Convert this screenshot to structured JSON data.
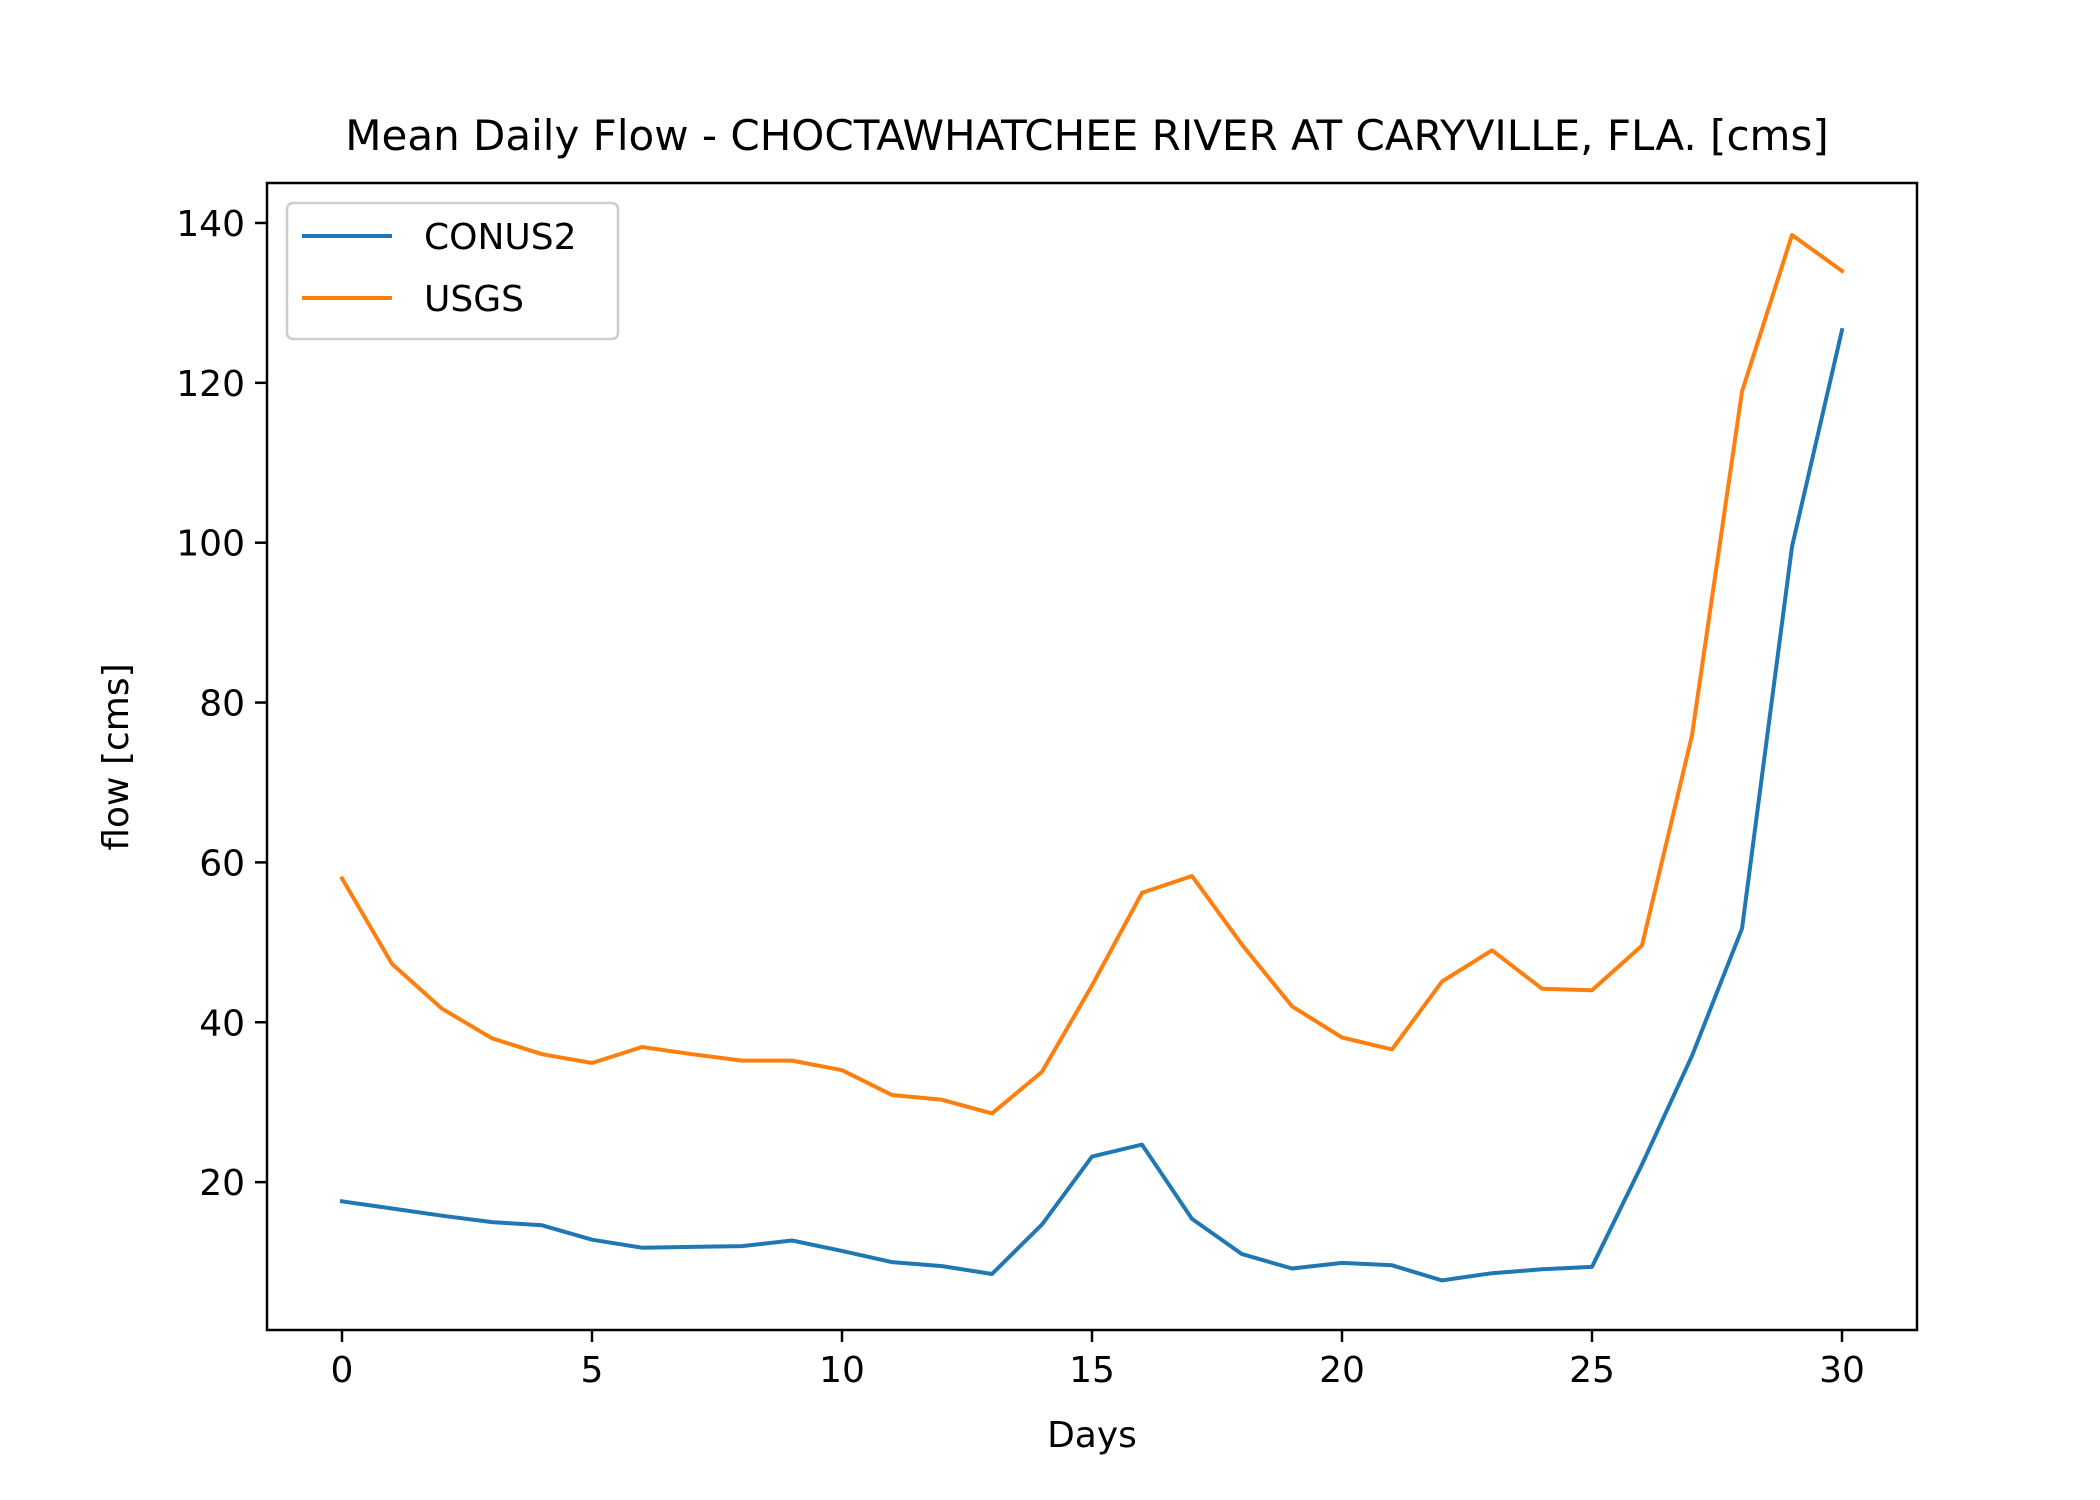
{
  "chart_data": {
    "type": "line",
    "title": "Mean Daily Flow - CHOCTAWHATCHEE RIVER AT CARYVILLE, FLA. [cms]",
    "xlabel": "Days",
    "ylabel": "flow [cms]",
    "xlim": [
      -1.5,
      31.5
    ],
    "ylim": [
      1.5,
      145
    ],
    "xticks": [
      0,
      5,
      10,
      15,
      20,
      25,
      30
    ],
    "yticks": [
      20,
      40,
      60,
      80,
      100,
      120,
      140
    ],
    "grid": false,
    "legend_position": "top-left",
    "x": [
      0,
      1,
      2,
      3,
      4,
      5,
      6,
      7,
      8,
      9,
      10,
      11,
      12,
      13,
      14,
      15,
      16,
      17,
      18,
      19,
      20,
      21,
      22,
      23,
      24,
      25,
      26,
      27,
      28,
      29,
      30
    ],
    "series": [
      {
        "name": "CONUS2",
        "color": "#1f77b4",
        "values": [
          17.6,
          16.7,
          15.8,
          15.0,
          14.6,
          12.8,
          11.8,
          11.9,
          12.0,
          12.7,
          11.4,
          10.0,
          9.5,
          8.5,
          14.7,
          23.2,
          24.7,
          15.4,
          11.0,
          9.2,
          9.9,
          9.6,
          7.7,
          8.6,
          9.1,
          9.4,
          22.2,
          35.8,
          51.7,
          99.5,
          126.6
        ]
      },
      {
        "name": "USGS",
        "color": "#ff7f0e",
        "values": [
          58.0,
          47.3,
          41.7,
          38.0,
          36.0,
          34.9,
          36.9,
          36.0,
          35.2,
          35.2,
          34.0,
          30.9,
          30.3,
          28.6,
          33.8,
          44.6,
          56.2,
          58.3,
          49.7,
          42.0,
          38.1,
          36.6,
          45.1,
          49.0,
          44.2,
          44.0,
          49.6,
          75.9,
          118.9,
          138.5,
          134.0
        ]
      }
    ]
  }
}
